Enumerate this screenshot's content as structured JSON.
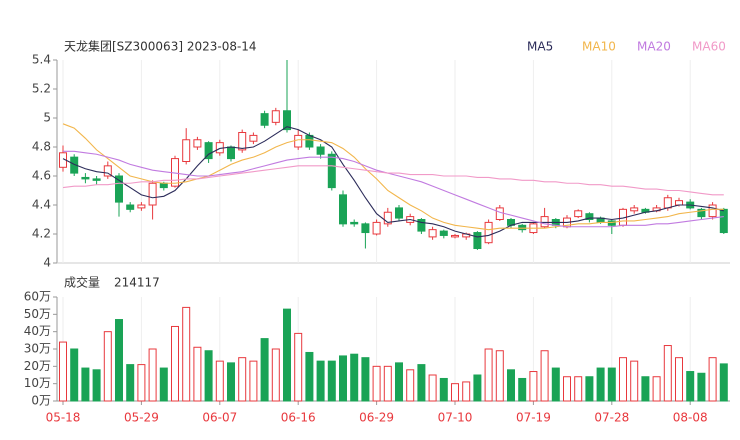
{
  "chart_data": [
    {
      "type": "candlestick",
      "title": "天龙集团[SZ300063] 2023-08-14",
      "open": [
        4.66,
        4.73,
        4.59,
        4.58,
        4.6,
        4.6,
        4.4,
        4.38,
        4.4,
        4.55,
        4.53,
        4.7,
        4.8,
        4.83,
        4.76,
        4.8,
        4.78,
        4.84,
        5.03,
        4.97,
        5.05,
        4.8,
        4.88,
        4.8,
        4.75,
        4.47,
        4.28,
        4.27,
        4.2,
        4.27,
        4.38,
        4.28,
        4.3,
        4.18,
        4.22,
        4.18,
        4.18,
        4.21,
        4.14,
        4.3,
        4.3,
        4.26,
        4.21,
        4.25,
        4.3,
        4.25,
        4.32,
        4.34,
        4.31,
        4.29,
        4.26,
        4.36,
        4.37,
        4.36,
        4.38,
        4.4,
        4.42,
        4.37,
        4.32,
        4.37
      ],
      "high": [
        4.81,
        4.75,
        4.62,
        4.6,
        4.7,
        4.62,
        4.42,
        4.42,
        4.57,
        4.56,
        4.74,
        4.93,
        4.87,
        4.84,
        4.85,
        4.81,
        4.92,
        4.9,
        5.05,
        5.07,
        5.4,
        4.92,
        4.9,
        4.82,
        4.77,
        4.5,
        4.3,
        4.28,
        4.3,
        4.38,
        4.4,
        4.34,
        4.31,
        4.25,
        4.23,
        4.2,
        4.21,
        4.22,
        4.3,
        4.4,
        4.31,
        4.27,
        4.28,
        4.38,
        4.31,
        4.33,
        4.37,
        4.35,
        4.32,
        4.3,
        4.38,
        4.4,
        4.38,
        4.4,
        4.47,
        4.45,
        4.44,
        4.38,
        4.42,
        4.38
      ],
      "low": [
        4.63,
        4.6,
        4.55,
        4.54,
        4.58,
        4.32,
        4.35,
        4.36,
        4.3,
        4.5,
        4.52,
        4.68,
        4.78,
        4.69,
        4.74,
        4.7,
        4.76,
        4.82,
        4.93,
        4.95,
        4.9,
        4.78,
        4.78,
        4.72,
        4.5,
        4.25,
        4.25,
        4.1,
        4.19,
        4.25,
        4.29,
        4.26,
        4.2,
        4.16,
        4.17,
        4.17,
        4.16,
        4.09,
        4.13,
        4.29,
        4.24,
        4.21,
        4.2,
        4.24,
        4.24,
        4.24,
        4.31,
        4.28,
        4.27,
        4.2,
        4.25,
        4.34,
        4.34,
        4.35,
        4.36,
        4.39,
        4.37,
        4.3,
        4.3,
        4.2
      ],
      "close": [
        4.76,
        4.62,
        4.58,
        4.57,
        4.67,
        4.42,
        4.37,
        4.4,
        4.55,
        4.52,
        4.72,
        4.85,
        4.85,
        4.72,
        4.83,
        4.72,
        4.9,
        4.88,
        4.95,
        5.05,
        4.92,
        4.88,
        4.8,
        4.75,
        4.52,
        4.27,
        4.27,
        4.21,
        4.28,
        4.35,
        4.31,
        4.32,
        4.22,
        4.23,
        4.19,
        4.19,
        4.2,
        4.1,
        4.28,
        4.38,
        4.26,
        4.23,
        4.27,
        4.32,
        4.26,
        4.31,
        4.36,
        4.3,
        4.28,
        4.26,
        4.37,
        4.38,
        4.35,
        4.38,
        4.45,
        4.43,
        4.38,
        4.32,
        4.4,
        4.21
      ],
      "up_color": "#e8383d",
      "down_color": "#1aa356",
      "series": [
        {
          "name": "MA5",
          "color": "#2c2c5a",
          "values": [
            4.72,
            4.68,
            4.65,
            4.63,
            4.62,
            4.57,
            4.52,
            4.47,
            4.45,
            4.46,
            4.5,
            4.58,
            4.67,
            4.75,
            4.79,
            4.8,
            4.79,
            4.8,
            4.84,
            4.89,
            4.94,
            4.92,
            4.88,
            4.85,
            4.8,
            4.68,
            4.57,
            4.45,
            4.34,
            4.28,
            4.29,
            4.3,
            4.28,
            4.27,
            4.25,
            4.22,
            4.2,
            4.18,
            4.19,
            4.22,
            4.26,
            4.28,
            4.28,
            4.28,
            4.28,
            4.28,
            4.29,
            4.31,
            4.31,
            4.3,
            4.31,
            4.33,
            4.35,
            4.36,
            4.38,
            4.4,
            4.4,
            4.39,
            4.38,
            4.36
          ]
        },
        {
          "name": "MA10",
          "color": "#f2b64c",
          "values": [
            4.96,
            4.93,
            4.86,
            4.78,
            4.72,
            4.66,
            4.6,
            4.58,
            4.56,
            4.55,
            4.55,
            4.56,
            4.58,
            4.6,
            4.64,
            4.68,
            4.71,
            4.73,
            4.76,
            4.8,
            4.83,
            4.85,
            4.85,
            4.84,
            4.83,
            4.79,
            4.73,
            4.65,
            4.58,
            4.5,
            4.45,
            4.4,
            4.36,
            4.31,
            4.28,
            4.26,
            4.25,
            4.24,
            4.23,
            4.24,
            4.24,
            4.24,
            4.24,
            4.24,
            4.25,
            4.26,
            4.27,
            4.27,
            4.28,
            4.28,
            4.29,
            4.29,
            4.3,
            4.31,
            4.32,
            4.34,
            4.35,
            4.36,
            4.37,
            4.37
          ]
        },
        {
          "name": "MA20",
          "color": "#c17be0",
          "values": [
            4.77,
            4.77,
            4.76,
            4.75,
            4.73,
            4.71,
            4.68,
            4.66,
            4.64,
            4.63,
            4.62,
            4.61,
            4.6,
            4.6,
            4.61,
            4.62,
            4.63,
            4.65,
            4.67,
            4.69,
            4.71,
            4.72,
            4.73,
            4.73,
            4.73,
            4.72,
            4.7,
            4.67,
            4.64,
            4.62,
            4.6,
            4.58,
            4.56,
            4.53,
            4.5,
            4.47,
            4.44,
            4.41,
            4.38,
            4.35,
            4.33,
            4.31,
            4.29,
            4.27,
            4.26,
            4.25,
            4.25,
            4.25,
            4.25,
            4.25,
            4.26,
            4.26,
            4.26,
            4.27,
            4.27,
            4.28,
            4.29,
            4.3,
            4.31,
            4.32
          ]
        },
        {
          "name": "MA60",
          "color": "#f19ac8",
          "values": [
            4.52,
            4.53,
            4.53,
            4.54,
            4.54,
            4.55,
            4.55,
            4.56,
            4.56,
            4.57,
            4.57,
            4.58,
            4.58,
            4.59,
            4.6,
            4.61,
            4.62,
            4.63,
            4.64,
            4.65,
            4.66,
            4.67,
            4.67,
            4.67,
            4.67,
            4.66,
            4.65,
            4.64,
            4.63,
            4.62,
            4.62,
            4.61,
            4.61,
            4.61,
            4.6,
            4.6,
            4.6,
            4.59,
            4.59,
            4.58,
            4.58,
            4.57,
            4.57,
            4.56,
            4.56,
            4.55,
            4.55,
            4.54,
            4.54,
            4.53,
            4.53,
            4.52,
            4.51,
            4.51,
            4.5,
            4.5,
            4.49,
            4.48,
            4.47,
            4.47
          ]
        }
      ],
      "ylim": [
        4,
        5.4
      ],
      "yticks": [
        4,
        4.2,
        4.4,
        4.6,
        4.8,
        5,
        5.2,
        5.4
      ]
    },
    {
      "type": "bar",
      "title": "成交量",
      "latest_volume": 214117,
      "categories": [
        "05-18",
        null,
        null,
        null,
        null,
        null,
        null,
        "05-29",
        null,
        null,
        null,
        null,
        null,
        null,
        "06-07",
        null,
        null,
        null,
        null,
        null,
        null,
        "06-16",
        null,
        null,
        null,
        null,
        null,
        null,
        "06-29",
        null,
        null,
        null,
        null,
        null,
        null,
        "07-10",
        null,
        null,
        null,
        null,
        null,
        null,
        "07-19",
        null,
        null,
        null,
        null,
        null,
        null,
        "07-28",
        null,
        null,
        null,
        null,
        null,
        null,
        "08-08",
        null,
        null,
        null
      ],
      "values": [
        34,
        30,
        19,
        18,
        40,
        47,
        21,
        21,
        30,
        19,
        43,
        54,
        31,
        29,
        23,
        22,
        25,
        23,
        36,
        30,
        53,
        39,
        28,
        23,
        23,
        26,
        27,
        25,
        20,
        20,
        22,
        18,
        21,
        15,
        13,
        10,
        11,
        15,
        30,
        29,
        18,
        13,
        17,
        29,
        19,
        14,
        14,
        14,
        19,
        19,
        25,
        23,
        14,
        14,
        32,
        25,
        17,
        16,
        25,
        21.41
      ],
      "ylim": [
        0,
        60
      ],
      "yticks": [
        {
          "value": 0,
          "label": "0万"
        },
        {
          "value": 10,
          "label": "10万"
        },
        {
          "value": 20,
          "label": "20万"
        },
        {
          "value": 30,
          "label": "30万"
        },
        {
          "value": 40,
          "label": "40万"
        },
        {
          "value": 50,
          "label": "50万"
        },
        {
          "value": 60,
          "label": "60万"
        }
      ]
    }
  ]
}
